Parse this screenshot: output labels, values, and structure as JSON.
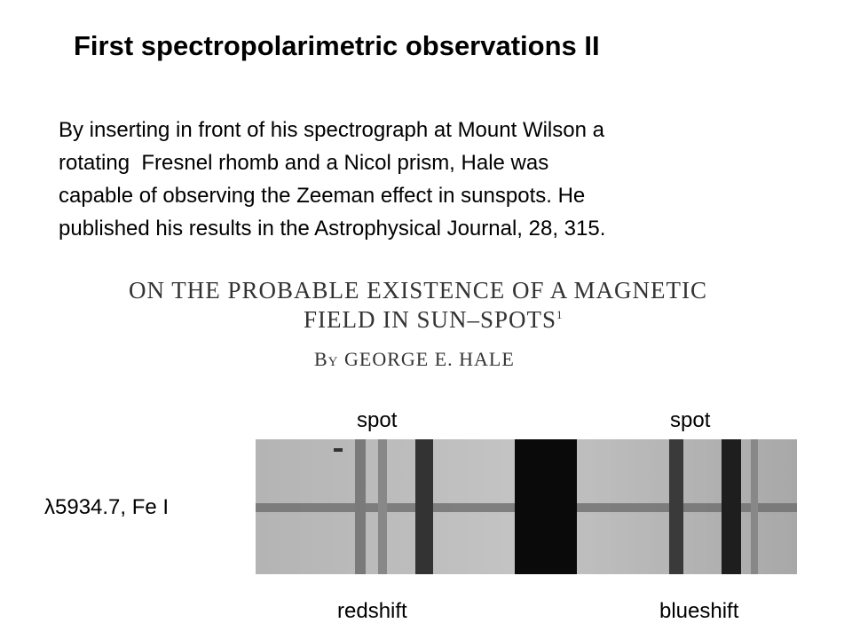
{
  "title": "First spectropolarimetric observations II",
  "paragraph": {
    "lines": [
      "By inserting in front of his spectrograph at Mount Wilson a",
      "rotating  Fresnel rhomb and a Nicol prism, Hale was",
      "capable of observing the Zeeman effect in sunspots. He",
      "published his results in the Astrophysical Journal, 28, 315."
    ]
  },
  "paper": {
    "title_lines": [
      "ON THE PROBABLE EXISTENCE OF A MAGNETIC",
      "FIELD IN SUN–SPOTS"
    ],
    "footnote_mark": "1",
    "byline": "By GEORGE E. HALE"
  },
  "figure": {
    "top_labels": [
      "spot",
      "spot"
    ],
    "side_label": "λ5934.7, Fe I",
    "bottom_labels": [
      "redshift",
      "blueshift"
    ]
  }
}
